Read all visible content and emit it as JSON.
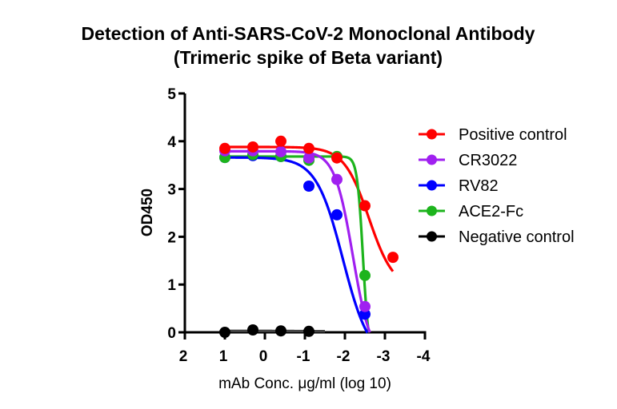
{
  "chart_data": {
    "type": "scatter",
    "fit": "4PL sigmoidal",
    "title": "Detection of Anti-SARS-CoV-2 Monoclonal Antibody",
    "subtitle": "(Trimeric spike of Beta variant)",
    "xlabel": "mAb Conc. μg/ml (log 10)",
    "ylabel": "OD450",
    "xlim": [
      2,
      -4
    ],
    "ylim": [
      0,
      5
    ],
    "x_reversed": true,
    "xticks": [
      2,
      1,
      0,
      -1,
      -2,
      -3,
      -4
    ],
    "xtick_labels": [
      "2",
      "1",
      "0",
      "-1",
      "-2",
      "-3",
      "-4"
    ],
    "yticks": [
      0,
      1,
      2,
      3,
      4,
      5
    ],
    "ytick_labels": [
      "0",
      "1",
      "2",
      "3",
      "4",
      "5"
    ],
    "grid": false,
    "legend_position": "right",
    "series": [
      {
        "name": "Positive control",
        "color": "#ff0000",
        "x": [
          1.0,
          0.3,
          -0.4,
          -1.1,
          -1.8,
          -2.5,
          -3.2
        ],
        "y": [
          3.85,
          3.88,
          4.0,
          3.85,
          3.65,
          2.65,
          1.57
        ],
        "fit": {
          "top": 3.88,
          "bottom": 0.9,
          "log_ec50": -2.6,
          "hill": 1.4
        }
      },
      {
        "name": "CR3022",
        "color": "#a020f0",
        "x": [
          1.0,
          0.3,
          -0.4,
          -1.1,
          -1.8,
          -2.5
        ],
        "y": [
          3.8,
          3.8,
          3.78,
          3.65,
          3.2,
          0.54
        ],
        "fit": {
          "top": 3.79,
          "bottom": -0.6,
          "log_ec50": -2.2,
          "hill": 1.9
        }
      },
      {
        "name": "RV82",
        "color": "#0000ff",
        "x": [
          1.0,
          0.3,
          -0.4,
          -1.1,
          -1.8,
          -2.5
        ],
        "y": [
          3.66,
          3.7,
          3.68,
          3.06,
          2.46,
          0.38
        ],
        "fit": {
          "top": 3.66,
          "bottom": -0.6,
          "log_ec50": -1.95,
          "hill": 1.3
        }
      },
      {
        "name": "ACE2-Fc",
        "color": "#1db41d",
        "x": [
          1.0,
          0.3,
          -0.4,
          -1.1,
          -1.8,
          -2.5
        ],
        "y": [
          3.66,
          3.72,
          3.68,
          3.6,
          3.68,
          1.19
        ],
        "fit": {
          "top": 3.68,
          "bottom": -0.5,
          "log_ec50": -2.45,
          "hill": 6.0
        }
      },
      {
        "name": "Negative control",
        "color": "#000000",
        "x": [
          1.0,
          0.3,
          -0.4,
          -1.1
        ],
        "y": [
          0.0,
          0.05,
          0.03,
          0.02
        ],
        "fit": {
          "top": 0.03,
          "bottom": 0.02,
          "log_ec50": -1.0,
          "hill": 1.0
        }
      }
    ]
  }
}
